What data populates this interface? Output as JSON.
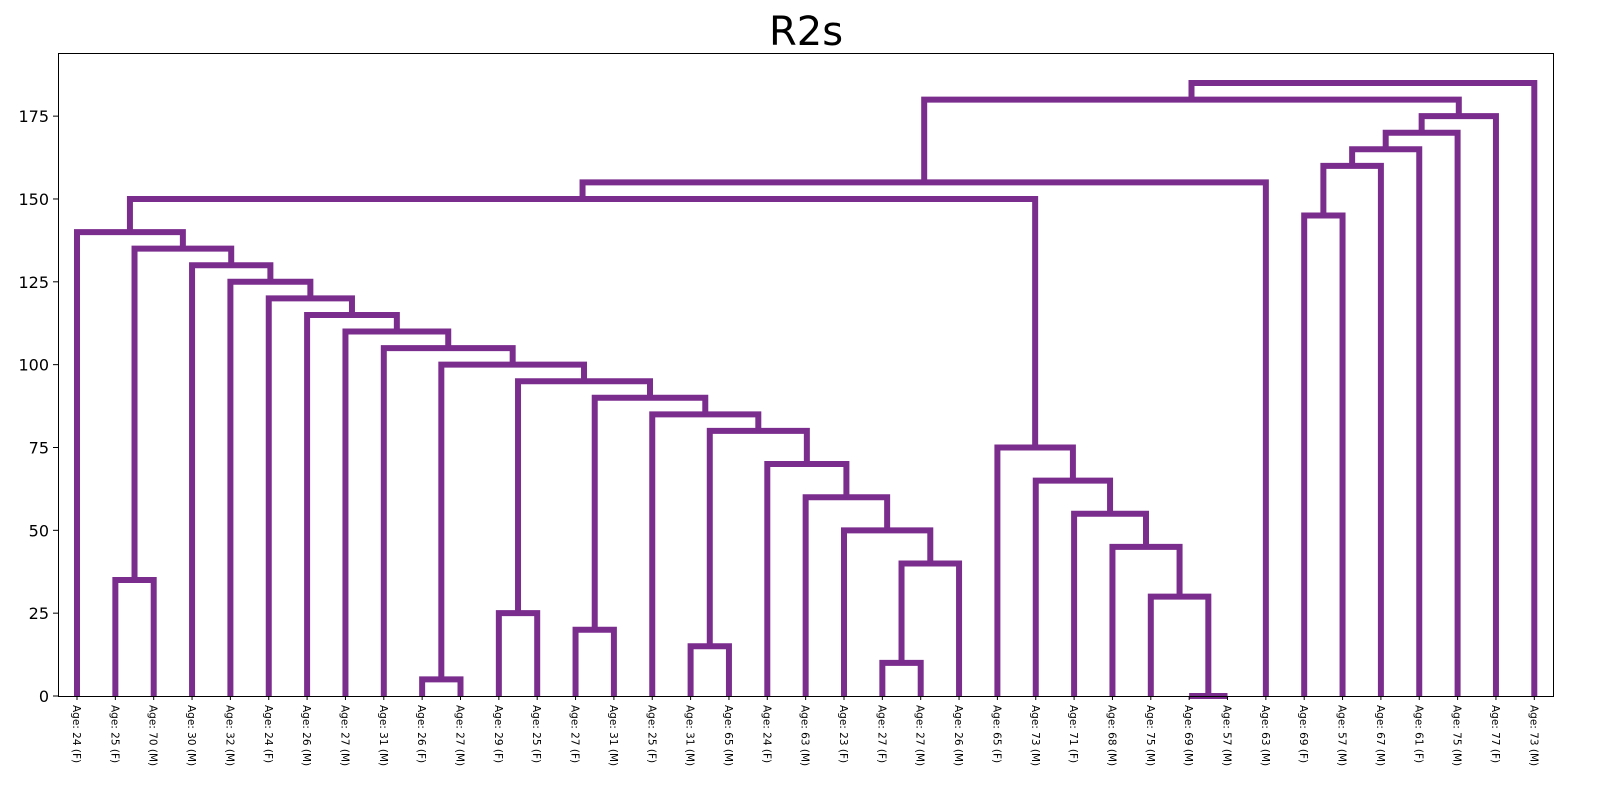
{
  "chart_data": {
    "type": "dendrogram",
    "title": "R2s",
    "xlabel": "",
    "ylabel": "",
    "ylim": [
      0,
      195
    ],
    "yticks": [
      0,
      25,
      50,
      75,
      100,
      125,
      150,
      175
    ],
    "link_color": "#7b2d8e",
    "leaves": [
      "Age: 24 (F)",
      "Age: 25 (F)",
      "Age: 70 (M)",
      "Age: 30 (M)",
      "Age: 32 (M)",
      "Age: 24 (F)",
      "Age: 26 (M)",
      "Age: 27 (M)",
      "Age: 31 (M)",
      "Age: 26 (F)",
      "Age: 27 (M)",
      "Age: 29 (F)",
      "Age: 25 (F)",
      "Age: 27 (F)",
      "Age: 31 (M)",
      "Age: 25 (F)",
      "Age: 31 (M)",
      "Age: 65 (M)",
      "Age: 24 (F)",
      "Age: 63 (M)",
      "Age: 23 (F)",
      "Age: 27 (F)",
      "Age: 27 (M)",
      "Age: 26 (M)",
      "Age: 65 (F)",
      "Age: 73 (M)",
      "Age: 71 (F)",
      "Age: 68 (M)",
      "Age: 75 (M)",
      "Age: 69 (M)",
      "Age: 57 (M)",
      "Age: 63 (M)",
      "Age: 69 (F)",
      "Age: 57 (M)",
      "Age: 67 (M)",
      "Age: 61 (F)",
      "Age: 75 (M)",
      "Age: 77 (F)",
      "Age: 73 (M)"
    ],
    "merges": [
      [
        1,
        2,
        35
      ],
      [
        9,
        10,
        5
      ],
      [
        11,
        12,
        25
      ],
      [
        13,
        14,
        20
      ],
      [
        16,
        17,
        15
      ],
      [
        21,
        22,
        10
      ],
      [
        29,
        30,
        0
      ],
      [
        32,
        33,
        145
      ],
      [
        "m5",
        23,
        40
      ],
      [
        20,
        "m8",
        50
      ],
      [
        19,
        "m9",
        60
      ],
      [
        18,
        "m10",
        70
      ],
      [
        "m4",
        "m11",
        80
      ],
      [
        15,
        "m12",
        85
      ],
      [
        "m3",
        "m13",
        90
      ],
      [
        "m2",
        "m14",
        95
      ],
      [
        "m1",
        "m15",
        100
      ],
      [
        8,
        "m16",
        105
      ],
      [
        7,
        "m17",
        110
      ],
      [
        6,
        "m18",
        115
      ],
      [
        5,
        "m19",
        120
      ],
      [
        4,
        "m20",
        125
      ],
      [
        3,
        "m21",
        130
      ],
      [
        "m0",
        "m22",
        135
      ],
      [
        0,
        "m23",
        140
      ],
      [
        28,
        "m6",
        30
      ],
      [
        27,
        "m25",
        45
      ],
      [
        26,
        "m26",
        55
      ],
      [
        25,
        "m27",
        65
      ],
      [
        24,
        "m28",
        75
      ],
      [
        "m24",
        "m29",
        150
      ],
      [
        "m30",
        31,
        155
      ],
      [
        "m7",
        34,
        160
      ],
      [
        "m32",
        35,
        165
      ],
      [
        "m33",
        36,
        170
      ],
      [
        "m34",
        37,
        175
      ],
      [
        "m31",
        "m35",
        180
      ],
      [
        "m36",
        38,
        185
      ]
    ]
  }
}
